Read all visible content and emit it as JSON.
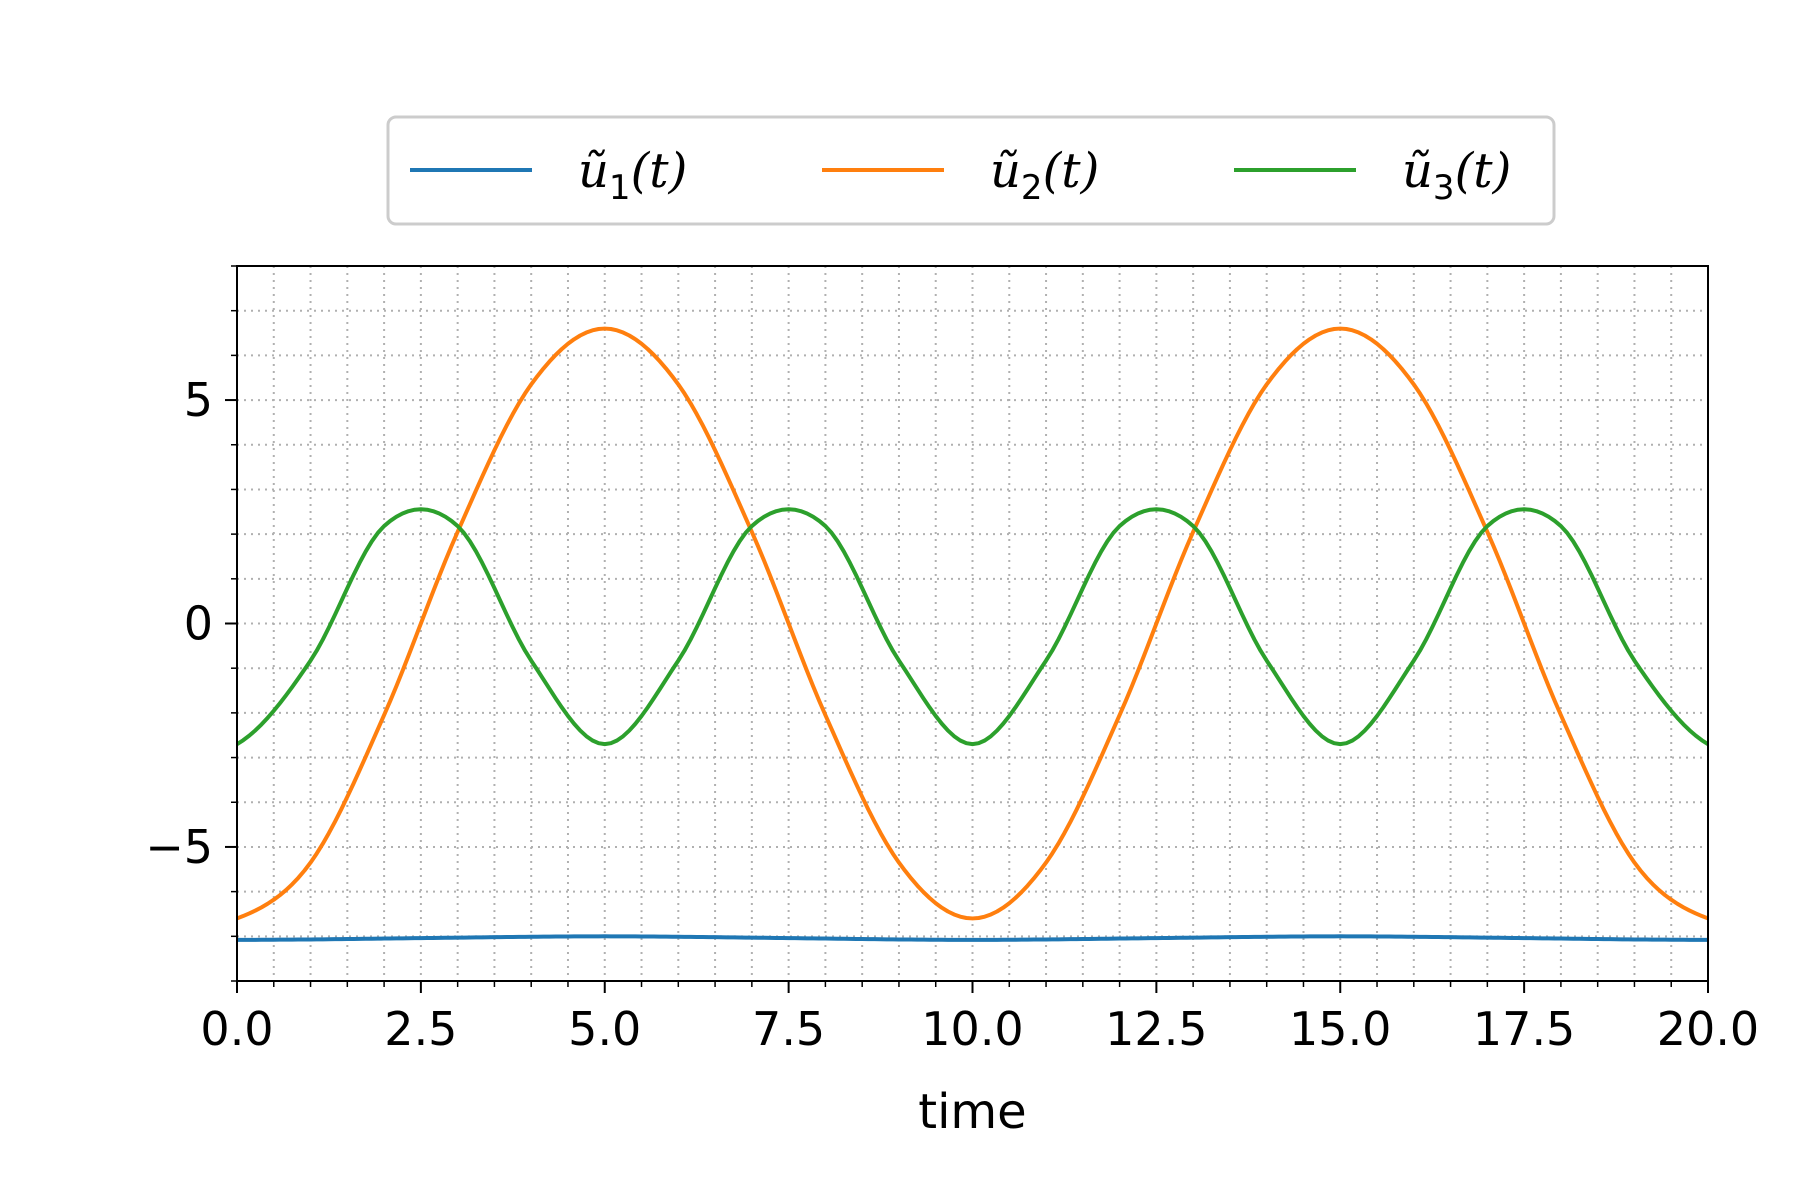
{
  "chart_data": {
    "type": "line",
    "title": "",
    "xlabel": "time",
    "ylabel": "",
    "xlim": [
      0.0,
      20.0
    ],
    "ylim": [
      -8,
      8
    ],
    "x_ticks": [
      0.0,
      2.5,
      5.0,
      7.5,
      10.0,
      12.5,
      15.0,
      17.5,
      20.0
    ],
    "x_tick_labels": [
      "0.0",
      "2.5",
      "5.0",
      "7.5",
      "10.0",
      "12.5",
      "15.0",
      "17.5",
      "20.0"
    ],
    "y_ticks": [
      -5,
      0,
      5
    ],
    "y_tick_labels": [
      "−5",
      "0",
      "5"
    ],
    "grid": "major and minor, dotted",
    "legend_placement": "top-center, above plot",
    "series": [
      {
        "name": "ũ1(t)",
        "legend_base": "ũ",
        "legend_sub": "1",
        "legend_tail": "(t)",
        "color": "#1f77b4",
        "x": [
          0,
          1,
          2,
          3,
          4,
          5,
          6,
          7,
          8,
          9,
          10,
          11,
          12,
          13,
          14,
          15,
          16,
          17,
          18,
          19,
          20
        ],
        "values": [
          -7.08,
          -7.07,
          -7.05,
          -7.03,
          -7.01,
          -7.0,
          -7.01,
          -7.03,
          -7.05,
          -7.07,
          -7.08,
          -7.07,
          -7.05,
          -7.03,
          -7.01,
          -7.0,
          -7.01,
          -7.03,
          -7.05,
          -7.07,
          -7.08
        ]
      },
      {
        "name": "ũ2(t)",
        "legend_base": "ũ",
        "legend_sub": "2",
        "legend_tail": "(t)",
        "color": "#ff7f0e",
        "x": [
          0,
          1,
          2,
          3,
          4,
          5,
          6,
          7,
          8,
          9,
          10,
          11,
          12,
          13,
          14,
          15,
          16,
          17,
          18,
          19,
          20
        ],
        "values": [
          -6.6,
          -5.35,
          -2.05,
          2.05,
          5.35,
          6.6,
          5.35,
          2.05,
          -2.05,
          -5.35,
          -6.6,
          -5.35,
          -2.05,
          2.05,
          5.35,
          6.6,
          5.35,
          2.05,
          -2.05,
          -5.35,
          -6.6
        ]
      },
      {
        "name": "ũ3(t)",
        "legend_base": "ũ",
        "legend_sub": "3",
        "legend_tail": "(t)",
        "color": "#2ca02c",
        "x": [
          0,
          1,
          2,
          3,
          4,
          5,
          6,
          7,
          8,
          9,
          10,
          11,
          12,
          13,
          14,
          15,
          16,
          17,
          18,
          19,
          20
        ],
        "values": [
          -2.7,
          -0.83,
          2.18,
          2.18,
          -0.83,
          -2.7,
          -0.83,
          2.18,
          2.18,
          -0.83,
          -2.7,
          -0.83,
          2.18,
          2.18,
          -0.83,
          -2.7,
          -0.83,
          2.18,
          2.18,
          -0.83,
          -2.7
        ]
      }
    ]
  }
}
